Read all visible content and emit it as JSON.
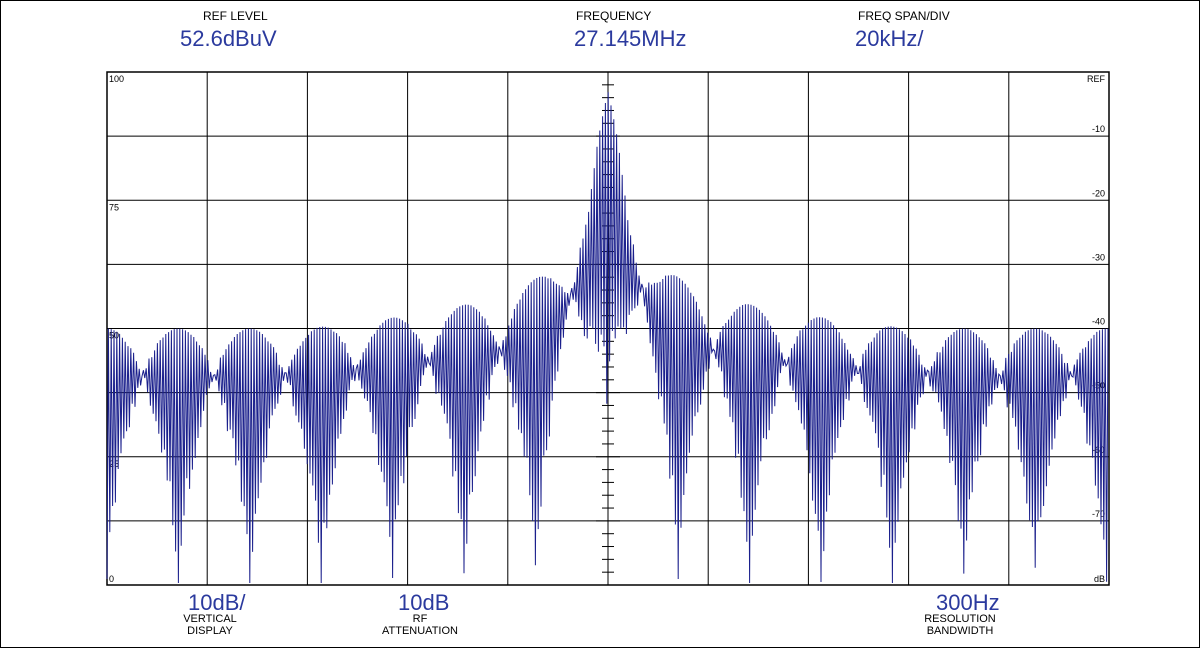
{
  "header": {
    "ref_level_label": "REF LEVEL",
    "ref_level_value": "52.6dBuV",
    "frequency_label": "FREQUENCY",
    "frequency_value": "27.145MHz",
    "span_label": "FREQ SPAN/DIV",
    "span_value": "20kHz/"
  },
  "footer": {
    "vertical_value": "10dB/",
    "vertical_label_1": "VERTICAL",
    "vertical_label_2": "DISPLAY",
    "rf_value": "10dB",
    "rf_label_1": "RF",
    "rf_label_2": "ATTENUATION",
    "res_value": "300Hz",
    "res_label_1": "RESOLUTION",
    "res_label_2": "BANDWIDTH"
  },
  "chart_data": {
    "type": "line",
    "x_divisions": 10,
    "y_divisions": 8,
    "center_frequency_mhz": 27.145,
    "span_per_div_khz": 20,
    "left_scale_labels": [
      "100",
      "75",
      "50",
      "25",
      "0"
    ],
    "right_scale_labels": [
      "REF",
      "-10",
      "-20",
      "-30",
      "-40",
      "-50",
      "-60",
      "-70",
      "dB"
    ],
    "grid": true,
    "trace_color": "#1a1f8c",
    "envelope": {
      "x_div": [
        0,
        2,
        3,
        4,
        4.5,
        4.8,
        4.9,
        5.0,
        5.1,
        5.2,
        5.5,
        6,
        7,
        8,
        10
      ],
      "peak_db": [
        -40,
        -40,
        -38,
        -35,
        -30,
        -20,
        -10,
        -3,
        -10,
        -20,
        -30,
        -35,
        -38,
        -40,
        -40
      ],
      "floor_db": [
        -80,
        -80,
        -80,
        -80,
        -78,
        -72,
        -60,
        -50,
        -60,
        -72,
        -78,
        -80,
        -80,
        -80,
        -80
      ]
    }
  }
}
